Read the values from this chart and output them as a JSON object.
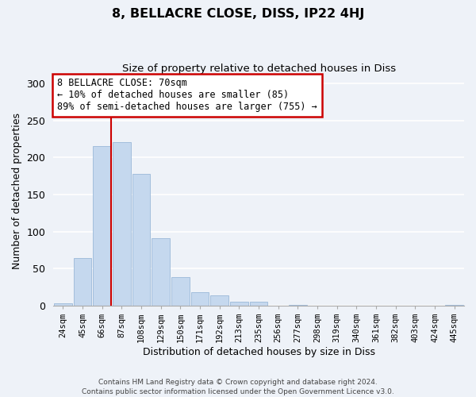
{
  "title": "8, BELLACRE CLOSE, DISS, IP22 4HJ",
  "subtitle": "Size of property relative to detached houses in Diss",
  "xlabel": "Distribution of detached houses by size in Diss",
  "ylabel": "Number of detached properties",
  "bar_color": "#c5d8ee",
  "bar_edge_color": "#9ab8d8",
  "categories": [
    "24sqm",
    "45sqm",
    "66sqm",
    "87sqm",
    "108sqm",
    "129sqm",
    "150sqm",
    "171sqm",
    "192sqm",
    "213sqm",
    "235sqm",
    "256sqm",
    "277sqm",
    "298sqm",
    "319sqm",
    "340sqm",
    "361sqm",
    "382sqm",
    "403sqm",
    "424sqm",
    "445sqm"
  ],
  "values": [
    3,
    64,
    215,
    221,
    178,
    91,
    39,
    18,
    14,
    5,
    5,
    0,
    1,
    0,
    0,
    0,
    0,
    0,
    0,
    0,
    1
  ],
  "ylim": [
    0,
    310
  ],
  "yticks": [
    0,
    50,
    100,
    150,
    200,
    250,
    300
  ],
  "property_line_color": "#cc0000",
  "annotation_title": "8 BELLACRE CLOSE: 70sqm",
  "annotation_line1": "← 10% of detached houses are smaller (85)",
  "annotation_line2": "89% of semi-detached houses are larger (755) →",
  "annotation_box_color": "#ffffff",
  "annotation_box_edge": "#cc0000",
  "footer_line1": "Contains HM Land Registry data © Crown copyright and database right 2024.",
  "footer_line2": "Contains public sector information licensed under the Open Government Licence v3.0.",
  "background_color": "#eef2f8",
  "grid_color": "#ffffff"
}
